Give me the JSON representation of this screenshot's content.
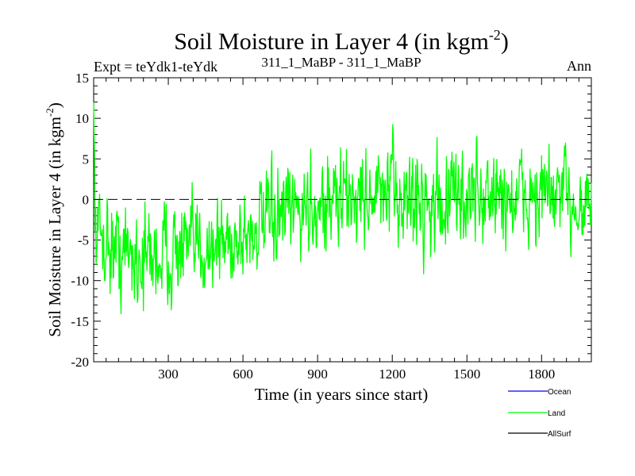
{
  "chart_data": {
    "type": "line",
    "title": "Soil Moisture in Layer 4 (in kgm",
    "title_superscript": "-2",
    "title_close": ")",
    "subtitle_left": "Expt = teYdk1-teYdk",
    "subtitle_center": "311_1_MaBP - 311_1_MaBP",
    "subtitle_right": "Ann",
    "xlabel": "Time (in years since start)",
    "ylabel": "Soil Moisture in Layer 4 (in kgm",
    "ylabel_superscript": "-2",
    "ylabel_close": ")",
    "xlim": [
      0,
      2000
    ],
    "ylim": [
      -20,
      15
    ],
    "xticks": [
      300,
      600,
      900,
      1200,
      1500,
      1800
    ],
    "xtick_labels": [
      "300",
      "600",
      "900",
      "1200",
      "1500",
      "1800"
    ],
    "yticks": [
      15,
      10,
      5,
      0,
      -5,
      -10,
      -15,
      -20
    ],
    "ytick_labels": [
      "15",
      "10",
      "5",
      "0",
      "-5",
      "-10",
      "-15",
      "-20"
    ],
    "reference_line": 0,
    "legend": [
      {
        "name": "Ocean",
        "color": "#0000ff"
      },
      {
        "name": "Land",
        "color": "#00ff00"
      },
      {
        "name": "AllSurf",
        "color": "#000000"
      }
    ],
    "series": [
      {
        "name": "Land",
        "color": "#00ff00",
        "x": [
          0,
          100,
          200,
          300,
          400,
          500,
          600,
          700,
          800,
          900,
          1000,
          1100,
          1200,
          1300,
          1400,
          1500,
          1600,
          1700,
          1800,
          1900,
          2000
        ],
        "y": [
          -3.5,
          -6.5,
          -7,
          -6.5,
          -6,
          -5.5,
          -4.5,
          -3,
          -1.5,
          -0.5,
          0,
          0.5,
          0.5,
          0,
          -0.5,
          0.5,
          0.5,
          0,
          0.5,
          0,
          -0.5
        ],
        "amplitude": [
          4,
          4.5,
          4.5,
          4.5,
          4,
          4,
          4,
          4,
          4,
          4.5,
          4.5,
          4,
          4.5,
          4.5,
          4.5,
          4.5,
          4.5,
          4,
          4.5,
          4,
          4
        ]
      }
    ]
  }
}
